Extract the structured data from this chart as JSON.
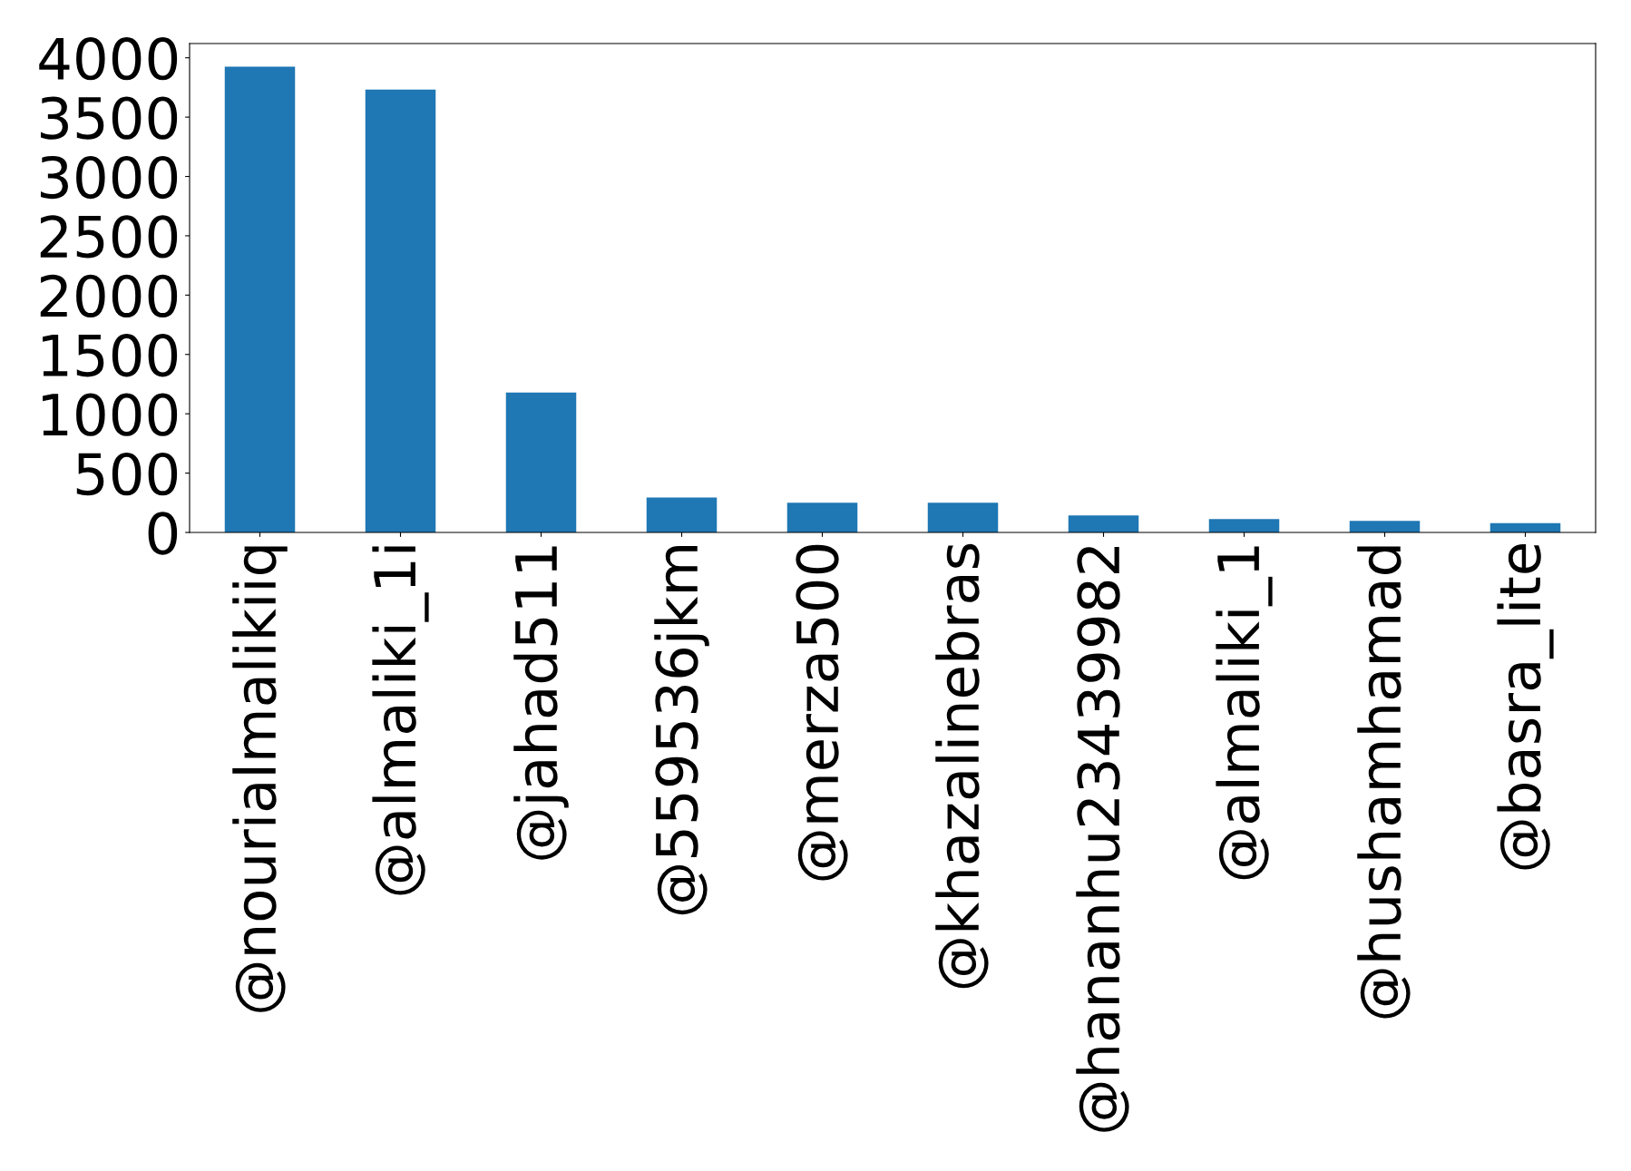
{
  "chart_data": {
    "type": "bar",
    "categories": [
      "@nourialmalikiiq",
      "@almaliki_1i",
      "@jahad511",
      "@559536jkm",
      "@merza500",
      "@khazalinebras",
      "@hananhu23439982",
      "@almaliki_1",
      "@hushamhamad",
      "@basra_lite"
    ],
    "values": [
      3925,
      3732,
      1180,
      294,
      251,
      251,
      144,
      112,
      98,
      79
    ],
    "color": "#1f77b4",
    "ylim": [
      0,
      4120
    ],
    "yticks": [
      0,
      500,
      1000,
      1500,
      2000,
      2500,
      3000,
      3500,
      4000
    ],
    "grid": false
  }
}
